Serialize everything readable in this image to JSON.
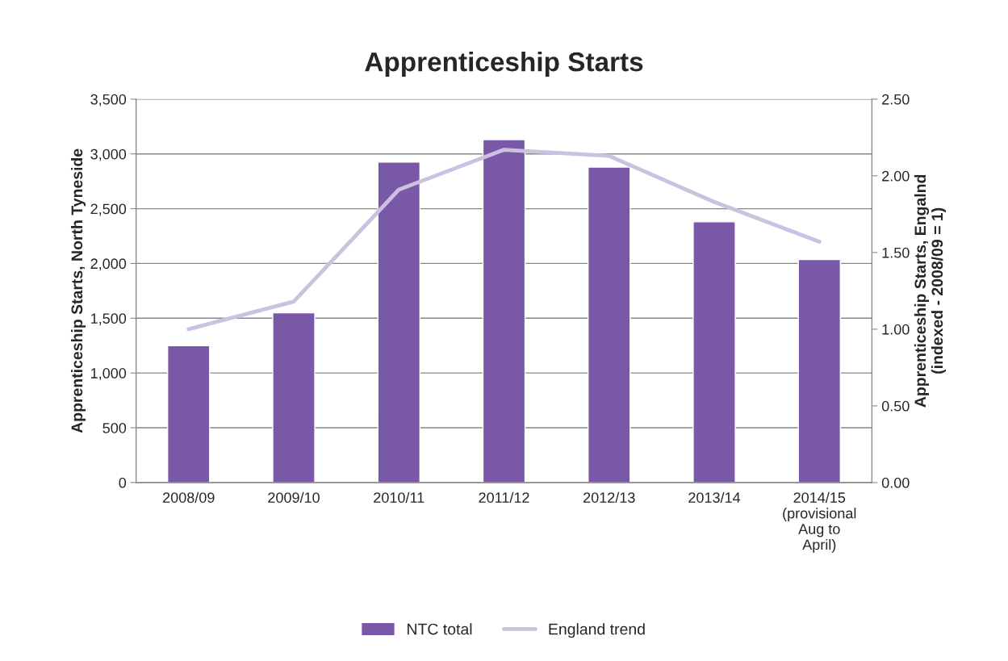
{
  "chart_data": {
    "type": "bar",
    "title": "Apprenticeship Starts",
    "ylabel": "Apprenticeship Starts, North Tyneside",
    "y2label": "Apprenticeship Starts, Engalnd\n(indexed - 2008/09 = 1)",
    "categories": [
      "2008/09",
      "2009/10",
      "2010/11",
      "2011/12",
      "2012/13",
      "2013/14",
      "2014/15\n(provisional\nAug to\nApril)"
    ],
    "series": [
      {
        "name": "NTC total",
        "color": "#7a58a8",
        "values": [
          1250,
          1550,
          2925,
          3130,
          2880,
          2380,
          2035
        ]
      },
      {
        "name": "England trend",
        "type": "line",
        "axis": "y2",
        "color": "#ccc1de",
        "values": [
          1.0,
          1.18,
          1.91,
          2.17,
          2.13,
          1.83,
          1.57
        ]
      }
    ],
    "ylim": [
      0,
      3500
    ],
    "yticks": [
      0,
      500,
      {
        "value": 1000,
        "label": "1,000"
      },
      {
        "value": 1500,
        "label": "1,500"
      },
      {
        "value": 2000,
        "label": "2,000"
      },
      {
        "value": 2500,
        "label": "2,500"
      },
      {
        "value": 3000,
        "label": "3,000"
      },
      {
        "value": 3500,
        "label": "3,500"
      }
    ],
    "y2lim": [
      0,
      2.5
    ],
    "y2ticks": [
      {
        "value": 0,
        "label": "0.00"
      },
      {
        "value": 0.5,
        "label": "0.50"
      },
      {
        "value": 1,
        "label": "1.00"
      },
      {
        "value": 1.5,
        "label": "1.50"
      },
      {
        "value": 2,
        "label": "2.00"
      },
      {
        "value": 2.5,
        "label": "2.50"
      }
    ],
    "grid": "y",
    "legend": "bottom",
    "marker": "none",
    "line_style": "solid"
  }
}
